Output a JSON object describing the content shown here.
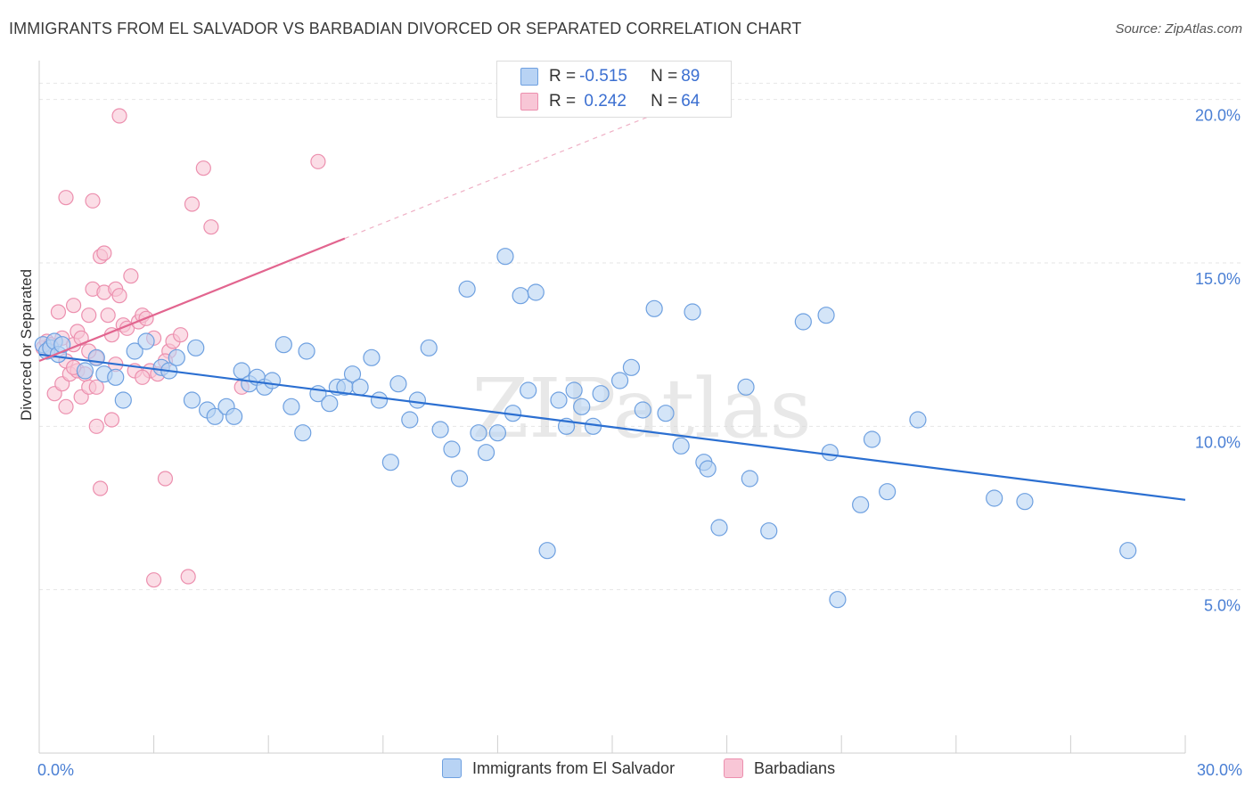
{
  "title": "IMMIGRANTS FROM EL SALVADOR VS BARBADIAN DIVORCED OR SEPARATED CORRELATION CHART",
  "source": "Source: ZipAtlas.com",
  "watermark": "ZIPatlas",
  "legend": {
    "rows": [
      {
        "r_label": "R = ",
        "r_value": "-0.515",
        "n_label": "N = ",
        "n_value": "89"
      },
      {
        "r_label": "R = ",
        "r_value": " 0.242",
        "n_label": "N = ",
        "n_value": "64"
      }
    ]
  },
  "colors": {
    "blue_fill": "#b8d3f4",
    "blue_stroke": "#6ea0e0",
    "blue_line": "#2b6fd1",
    "pink_fill": "#f8c6d6",
    "pink_stroke": "#ec8fae",
    "pink_line": "#e2658f",
    "tick_label": "#4a7fd4",
    "grid": "#e6e6e6"
  },
  "chart_data": {
    "type": "scatter",
    "title": "IMMIGRANTS FROM EL SALVADOR VS BARBADIAN DIVORCED OR SEPARATED CORRELATION CHART",
    "xlabel": "",
    "ylabel": "Divorced or Separated",
    "xlim": [
      0,
      30
    ],
    "ylim": [
      0,
      21
    ],
    "x_tick_labels": [
      {
        "value": 0,
        "label": "0.0%"
      },
      {
        "value": 30,
        "label": "30.0%"
      }
    ],
    "y_tick_labels": [
      {
        "value": 5,
        "label": "5.0%"
      },
      {
        "value": 10,
        "label": "10.0%"
      },
      {
        "value": 15,
        "label": "15.0%"
      },
      {
        "value": 20,
        "label": "20.0%"
      }
    ],
    "grid": true,
    "legend_position": "top-center",
    "series": [
      {
        "name": "Immigrants from El Salvador",
        "color": "blue",
        "trend": {
          "x": [
            0,
            30
          ],
          "y": [
            12.2,
            7.75
          ]
        },
        "points": [
          [
            0.1,
            12.5
          ],
          [
            0.2,
            12.3
          ],
          [
            0.3,
            12.4
          ],
          [
            0.4,
            12.6
          ],
          [
            0.5,
            12.2
          ],
          [
            0.6,
            12.5
          ],
          [
            1.2,
            11.7
          ],
          [
            1.5,
            12.1
          ],
          [
            1.7,
            11.6
          ],
          [
            2.0,
            11.5
          ],
          [
            2.2,
            10.8
          ],
          [
            2.5,
            12.3
          ],
          [
            2.8,
            12.6
          ],
          [
            3.2,
            11.8
          ],
          [
            3.4,
            11.7
          ],
          [
            3.6,
            12.1
          ],
          [
            4.1,
            12.4
          ],
          [
            4.0,
            10.8
          ],
          [
            4.4,
            10.5
          ],
          [
            4.6,
            10.3
          ],
          [
            4.9,
            10.6
          ],
          [
            5.1,
            10.3
          ],
          [
            5.3,
            11.7
          ],
          [
            5.5,
            11.3
          ],
          [
            5.7,
            11.5
          ],
          [
            5.9,
            11.2
          ],
          [
            6.1,
            11.4
          ],
          [
            6.4,
            12.5
          ],
          [
            6.6,
            10.6
          ],
          [
            6.9,
            9.8
          ],
          [
            7.0,
            12.3
          ],
          [
            7.3,
            11.0
          ],
          [
            7.6,
            10.7
          ],
          [
            7.8,
            11.2
          ],
          [
            8.0,
            11.2
          ],
          [
            8.2,
            11.6
          ],
          [
            8.4,
            11.2
          ],
          [
            8.7,
            12.1
          ],
          [
            8.9,
            10.8
          ],
          [
            9.2,
            8.9
          ],
          [
            9.4,
            11.3
          ],
          [
            9.7,
            10.2
          ],
          [
            9.9,
            10.8
          ],
          [
            10.2,
            12.4
          ],
          [
            10.5,
            9.9
          ],
          [
            10.8,
            9.3
          ],
          [
            11.0,
            8.4
          ],
          [
            11.2,
            14.2
          ],
          [
            11.5,
            9.8
          ],
          [
            11.7,
            9.2
          ],
          [
            12.0,
            9.8
          ],
          [
            12.2,
            15.2
          ],
          [
            12.4,
            10.4
          ],
          [
            12.6,
            14.0
          ],
          [
            12.8,
            11.1
          ],
          [
            13.0,
            14.1
          ],
          [
            13.3,
            6.2
          ],
          [
            13.6,
            10.8
          ],
          [
            13.8,
            10.0
          ],
          [
            14.0,
            11.1
          ],
          [
            14.2,
            10.6
          ],
          [
            14.5,
            10.0
          ],
          [
            14.7,
            11.0
          ],
          [
            15.2,
            11.4
          ],
          [
            15.5,
            11.8
          ],
          [
            15.8,
            10.5
          ],
          [
            16.1,
            13.6
          ],
          [
            16.4,
            10.4
          ],
          [
            16.8,
            9.4
          ],
          [
            17.1,
            13.5
          ],
          [
            17.4,
            8.9
          ],
          [
            17.5,
            8.7
          ],
          [
            17.8,
            6.9
          ],
          [
            18.5,
            11.2
          ],
          [
            18.6,
            8.4
          ],
          [
            19.1,
            6.8
          ],
          [
            20.0,
            13.2
          ],
          [
            20.6,
            13.4
          ],
          [
            20.7,
            9.2
          ],
          [
            20.9,
            4.7
          ],
          [
            21.5,
            7.6
          ],
          [
            21.8,
            9.6
          ],
          [
            22.2,
            8.0
          ],
          [
            23.0,
            10.2
          ],
          [
            25.0,
            7.8
          ],
          [
            25.8,
            7.7
          ],
          [
            28.5,
            6.2
          ]
        ]
      },
      {
        "name": "Barbadians",
        "color": "pink",
        "trend": {
          "x": [
            0,
            8
          ],
          "y": [
            12.0,
            15.75
          ]
        },
        "trend_dashed": {
          "x": [
            8,
            16
          ],
          "y": [
            15.75,
            19.5
          ]
        },
        "points": [
          [
            0.1,
            12.4
          ],
          [
            0.2,
            12.6
          ],
          [
            0.3,
            12.5
          ],
          [
            0.3,
            12.3
          ],
          [
            0.4,
            11.0
          ],
          [
            0.5,
            13.5
          ],
          [
            0.6,
            12.7
          ],
          [
            0.6,
            11.3
          ],
          [
            0.7,
            10.6
          ],
          [
            0.7,
            12.0
          ],
          [
            0.8,
            11.6
          ],
          [
            0.9,
            12.5
          ],
          [
            0.9,
            13.7
          ],
          [
            1.0,
            11.7
          ],
          [
            1.0,
            12.9
          ],
          [
            1.1,
            12.7
          ],
          [
            1.1,
            10.9
          ],
          [
            1.2,
            11.6
          ],
          [
            1.3,
            13.4
          ],
          [
            1.3,
            11.2
          ],
          [
            1.4,
            14.2
          ],
          [
            1.5,
            11.2
          ],
          [
            1.5,
            12.1
          ],
          [
            1.6,
            15.2
          ],
          [
            1.7,
            14.1
          ],
          [
            1.7,
            15.3
          ],
          [
            1.8,
            13.4
          ],
          [
            1.9,
            12.8
          ],
          [
            2.0,
            14.2
          ],
          [
            2.1,
            14.0
          ],
          [
            2.2,
            13.1
          ],
          [
            2.3,
            13.0
          ],
          [
            2.4,
            14.6
          ],
          [
            2.5,
            11.7
          ],
          [
            2.6,
            13.2
          ],
          [
            2.7,
            13.4
          ],
          [
            2.8,
            13.3
          ],
          [
            2.9,
            11.7
          ],
          [
            3.0,
            12.7
          ],
          [
            3.1,
            11.6
          ],
          [
            3.3,
            8.4
          ],
          [
            3.4,
            12.3
          ],
          [
            3.5,
            12.6
          ],
          [
            3.7,
            12.8
          ],
          [
            2.0,
            11.9
          ],
          [
            1.9,
            10.2
          ],
          [
            0.7,
            17.0
          ],
          [
            1.4,
            16.9
          ],
          [
            2.1,
            19.5
          ],
          [
            4.0,
            16.8
          ],
          [
            4.3,
            17.9
          ],
          [
            4.5,
            16.1
          ],
          [
            7.3,
            18.1
          ],
          [
            5.3,
            11.2
          ],
          [
            1.6,
            8.1
          ],
          [
            3.0,
            5.3
          ],
          [
            3.9,
            5.4
          ],
          [
            1.5,
            10.0
          ],
          [
            2.7,
            11.5
          ],
          [
            3.3,
            12.0
          ],
          [
            0.9,
            11.8
          ],
          [
            1.3,
            12.3
          ]
        ]
      }
    ]
  },
  "bottom_legend": [
    {
      "label": "Immigrants from El Salvador",
      "color": "blue"
    },
    {
      "label": "Barbadians",
      "color": "pink"
    }
  ]
}
